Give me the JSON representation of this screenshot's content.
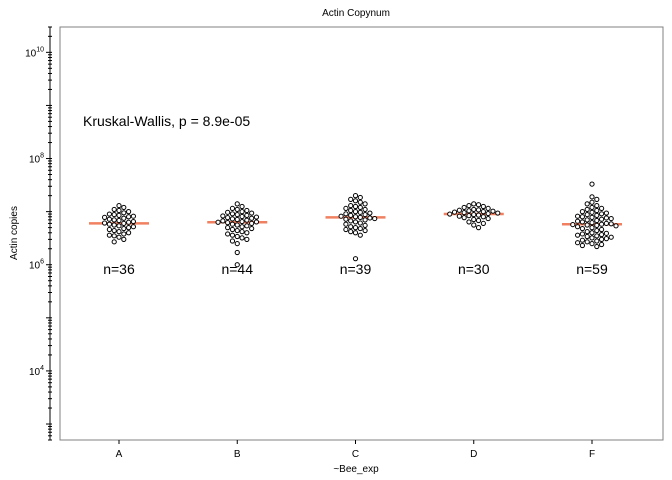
{
  "chart_data": {
    "type": "scatter",
    "subtype": "beeswarm-with-median",
    "title": "Actin Copynum",
    "xlabel": "~Bee_exp",
    "ylabel": "Actin copies",
    "y_scale": "log10",
    "ylim": [
      500,
      30000000000
    ],
    "y_ticks_labeled": [
      {
        "base": "10",
        "exp": "4",
        "value": 10000
      },
      {
        "base": "10",
        "exp": "6",
        "value": 1000000
      },
      {
        "base": "10",
        "exp": "8",
        "value": 100000000
      },
      {
        "base": "10",
        "exp": "10",
        "value": 10000000000
      }
    ],
    "grid": false,
    "annotation": "Kruskal-Wallis, p = 8.9e-05",
    "colors": {
      "median_line": "#f08060",
      "point_stroke": "#000000",
      "point_fill": "#ffffff",
      "frame": "#808080"
    },
    "categories": [
      "A",
      "B",
      "C",
      "D",
      "F"
    ],
    "groups": [
      {
        "name": "A",
        "count_label": "n=36",
        "median": 6000000,
        "values": [
          13000000,
          12000000,
          11000000,
          10500000,
          10000000,
          9500000,
          9000000,
          8800000,
          8500000,
          8200000,
          8000000,
          7800000,
          7500000,
          7200000,
          7000000,
          6800000,
          6500000,
          6300000,
          6100000,
          6000000,
          5800000,
          5600000,
          5400000,
          5200000,
          5000000,
          4800000,
          4600000,
          4400000,
          4200000,
          4000000,
          3800000,
          3600000,
          3500000,
          3300000,
          3000000,
          2700000
        ]
      },
      {
        "name": "B",
        "count_label": "n=44",
        "median": 6300000,
        "values": [
          14000000,
          12500000,
          11500000,
          11000000,
          10500000,
          10000000,
          9700000,
          9400000,
          9100000,
          8800000,
          8500000,
          8300000,
          8100000,
          7900000,
          7700000,
          7500000,
          7300000,
          7100000,
          6900000,
          6700000,
          6500000,
          6400000,
          6300000,
          6200000,
          6000000,
          5800000,
          5600000,
          5400000,
          5200000,
          5000000,
          4800000,
          4600000,
          4400000,
          4200000,
          4000000,
          3800000,
          3600000,
          3400000,
          3200000,
          3000000,
          2800000,
          2500000,
          1700000,
          1000000
        ]
      },
      {
        "name": "C",
        "count_label": "n=39",
        "median": 7800000,
        "values": [
          20000000,
          18500000,
          17000000,
          16000000,
          15000000,
          14000000,
          13000000,
          12500000,
          12000000,
          11500000,
          11000000,
          10500000,
          10000000,
          9700000,
          9400000,
          9100000,
          8800000,
          8500000,
          8200000,
          8000000,
          7800000,
          7600000,
          7400000,
          7200000,
          7000000,
          6700000,
          6400000,
          6100000,
          5800000,
          5500000,
          5200000,
          5000000,
          4800000,
          4600000,
          4400000,
          4200000,
          4000000,
          3600000,
          1300000
        ]
      },
      {
        "name": "D",
        "count_label": "n=30",
        "median": 9000000,
        "values": [
          14000000,
          13500000,
          13000000,
          12500000,
          12000000,
          11500000,
          11000000,
          10800000,
          10600000,
          10400000,
          10200000,
          10000000,
          9800000,
          9600000,
          9400000,
          9200000,
          9000000,
          8800000,
          8600000,
          8400000,
          8200000,
          8000000,
          7700000,
          7400000,
          7100000,
          6800000,
          6400000,
          6000000,
          5600000,
          5000000
        ]
      },
      {
        "name": "F",
        "count_label": "n=59",
        "median": 5800000,
        "values": [
          33000000,
          19000000,
          17000000,
          15000000,
          14000000,
          13000000,
          12000000,
          11500000,
          11000000,
          10500000,
          10000000,
          9700000,
          9400000,
          9100000,
          8800000,
          8500000,
          8200000,
          8000000,
          7800000,
          7600000,
          7400000,
          7200000,
          7000000,
          6800000,
          6600000,
          6400000,
          6200000,
          6000000,
          5900000,
          5800000,
          5700000,
          5600000,
          5500000,
          5400000,
          5200000,
          5000000,
          4800000,
          4600000,
          4400000,
          4200000,
          4000000,
          3900000,
          3800000,
          3700000,
          3600000,
          3500000,
          3400000,
          3300000,
          3200000,
          3100000,
          3000000,
          2900000,
          2800000,
          2700000,
          2600000,
          2500000,
          2400000,
          2300000,
          2200000
        ]
      }
    ]
  }
}
